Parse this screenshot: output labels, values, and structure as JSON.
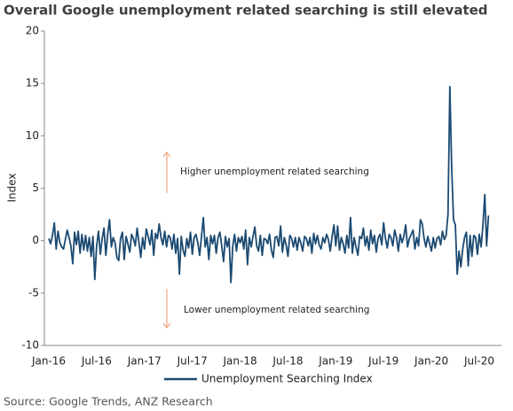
{
  "chart_data": {
    "type": "line",
    "title": "Overall Google unemployment related searching is still elevated",
    "source": "Source: Google Trends, ANZ Research",
    "y_label": "Index",
    "annotations": [
      "Higher unemployment related searching",
      "Lower unemployment related searching"
    ],
    "categories": [
      "Jan-16",
      null,
      null,
      null,
      null,
      null,
      null,
      null,
      null,
      null,
      null,
      null,
      null,
      null,
      null,
      null,
      null,
      null,
      null,
      null,
      null,
      null,
      null,
      null,
      null,
      null,
      "Jul-16",
      null,
      null,
      null,
      null,
      null,
      null,
      null,
      null,
      null,
      null,
      null,
      null,
      null,
      null,
      null,
      null,
      null,
      null,
      null,
      null,
      null,
      null,
      null,
      null,
      null,
      "Jan-17",
      null,
      null,
      null,
      null,
      null,
      null,
      null,
      null,
      null,
      null,
      null,
      null,
      null,
      null,
      null,
      null,
      null,
      null,
      null,
      null,
      null,
      null,
      null,
      null,
      null,
      "Jul-17",
      null,
      null,
      null,
      null,
      null,
      null,
      null,
      null,
      null,
      null,
      null,
      null,
      null,
      null,
      null,
      null,
      null,
      null,
      null,
      null,
      null,
      null,
      null,
      null,
      null,
      "Jan-18",
      null,
      null,
      null,
      null,
      null,
      null,
      null,
      null,
      null,
      null,
      null,
      null,
      null,
      null,
      null,
      null,
      null,
      null,
      null,
      null,
      null,
      null,
      null,
      null,
      null,
      "Jul-18",
      null,
      null,
      null,
      null,
      null,
      null,
      null,
      null,
      null,
      null,
      null,
      null,
      null,
      null,
      null,
      null,
      null,
      null,
      null,
      null,
      null,
      null,
      null,
      null,
      null,
      "Jan-19",
      null,
      null,
      null,
      null,
      null,
      null,
      null,
      null,
      null,
      null,
      null,
      null,
      null,
      null,
      null,
      null,
      null,
      null,
      null,
      null,
      null,
      null,
      null,
      null,
      null,
      "Jul-19",
      null,
      null,
      null,
      null,
      null,
      null,
      null,
      null,
      null,
      null,
      null,
      null,
      null,
      null,
      null,
      null,
      null,
      null,
      null,
      null,
      null,
      null,
      null,
      null,
      null,
      "Jan-20",
      null,
      null,
      null,
      null,
      null,
      null,
      null,
      null,
      null,
      null,
      null,
      null,
      null,
      null,
      null,
      null,
      null,
      null,
      null,
      null,
      null,
      null,
      null,
      null,
      null,
      "Jul-20",
      null,
      null,
      null,
      null,
      null
    ],
    "series": [
      {
        "name": "Unemployment Searching Index",
        "color": "#1b4a72",
        "values": [
          0.2,
          -0.3,
          0.5,
          1.7,
          -0.8,
          0.9,
          -0.2,
          -0.6,
          -0.8,
          0.1,
          1.0,
          0.3,
          -0.5,
          -2.2,
          0.8,
          -0.4,
          0.9,
          -1.2,
          0.6,
          -0.9,
          0.5,
          -1.0,
          0.3,
          -1.5,
          0.4,
          -3.7,
          -0.5,
          0.9,
          -1.3,
          0.2,
          1.2,
          -1.4,
          0.6,
          2.0,
          -0.6,
          0.3,
          -0.2,
          -1.6,
          -1.9,
          0.2,
          0.8,
          -1.8,
          0.4,
          -0.3,
          -1.1,
          0.6,
          0.2,
          -0.5,
          1.2,
          -0.2,
          -1.6,
          0.3,
          -0.8,
          1.1,
          0.4,
          -0.4,
          1.0,
          -1.4,
          0.7,
          0.2,
          1.6,
          0.3,
          -0.4,
          0.9,
          -0.6,
          0.5,
          0.3,
          -0.8,
          0.6,
          -1.2,
          0.2,
          -3.2,
          0.4,
          -0.9,
          -1.5,
          0.2,
          -0.7,
          0.8,
          -1.3,
          0.3,
          0.6,
          -0.2,
          -1.4,
          0.4,
          2.2,
          -0.6,
          0.3,
          -1.8,
          0.5,
          -0.3,
          0.5,
          -1.2,
          0.3,
          0.8,
          -0.5,
          -2.0,
          0.4,
          -0.6,
          0.2,
          -4.0,
          -0.5,
          0.6,
          -1.0,
          0.3,
          -0.2,
          0.4,
          -0.8,
          1.0,
          -2.3,
          0.3,
          -0.6,
          0.4,
          1.3,
          -0.5,
          -1.0,
          0.5,
          -1.4,
          0.2,
          0.1,
          -0.3,
          0.6,
          -0.9,
          -1.6,
          0.3,
          0.4,
          -0.5,
          1.4,
          -1.1,
          0.3,
          -0.4,
          -1.5,
          0.5,
          0.2,
          -0.6,
          0.3,
          -0.9,
          0.3,
          -0.2,
          -1.0,
          0.4,
          0.2,
          -0.5,
          0.3,
          -1.2,
          0.7,
          -0.3,
          0.5,
          -0.4,
          -0.8,
          0.3,
          -0.2,
          0.6,
          0.1,
          -1.0,
          0.4,
          1.5,
          -0.5,
          1.4,
          -0.9,
          0.3,
          -0.3,
          -1.2,
          0.5,
          -0.7,
          2.2,
          -1.2,
          0.3,
          -0.6,
          -1.4,
          0.4,
          0.2,
          1.2,
          -0.5,
          0.4,
          -0.9,
          1.0,
          -0.3,
          0.5,
          -1.1,
          0.2,
          0.6,
          -0.4,
          1.7,
          0.2,
          -0.7,
          0.6,
          0.3,
          -0.5,
          1.0,
          0.3,
          -1.0,
          0.6,
          -0.2,
          0.4,
          1.5,
          -0.6,
          0.2,
          0.6,
          1.0,
          -0.8,
          0.3,
          -0.5,
          2.0,
          1.6,
          0.2,
          -0.6,
          0.4,
          -0.3,
          -1.0,
          0.3,
          -0.7,
          0.2,
          0.4,
          -0.4,
          0.9,
          0.1,
          0.5,
          2.5,
          14.7,
          7.0,
          2.0,
          1.5,
          -3.2,
          -1.0,
          -2.5,
          -0.8,
          0.3,
          0.8,
          -2.4,
          0.5,
          -1.5,
          0.5,
          0.3,
          -1.3,
          0.6,
          -0.6,
          1.5,
          4.4,
          -0.5,
          2.4
        ]
      }
    ],
    "ylim": [
      -10,
      20
    ],
    "yticks": [
      -10,
      -5,
      0,
      5,
      10,
      15,
      20
    ],
    "annotation_color": "#f4a582"
  }
}
